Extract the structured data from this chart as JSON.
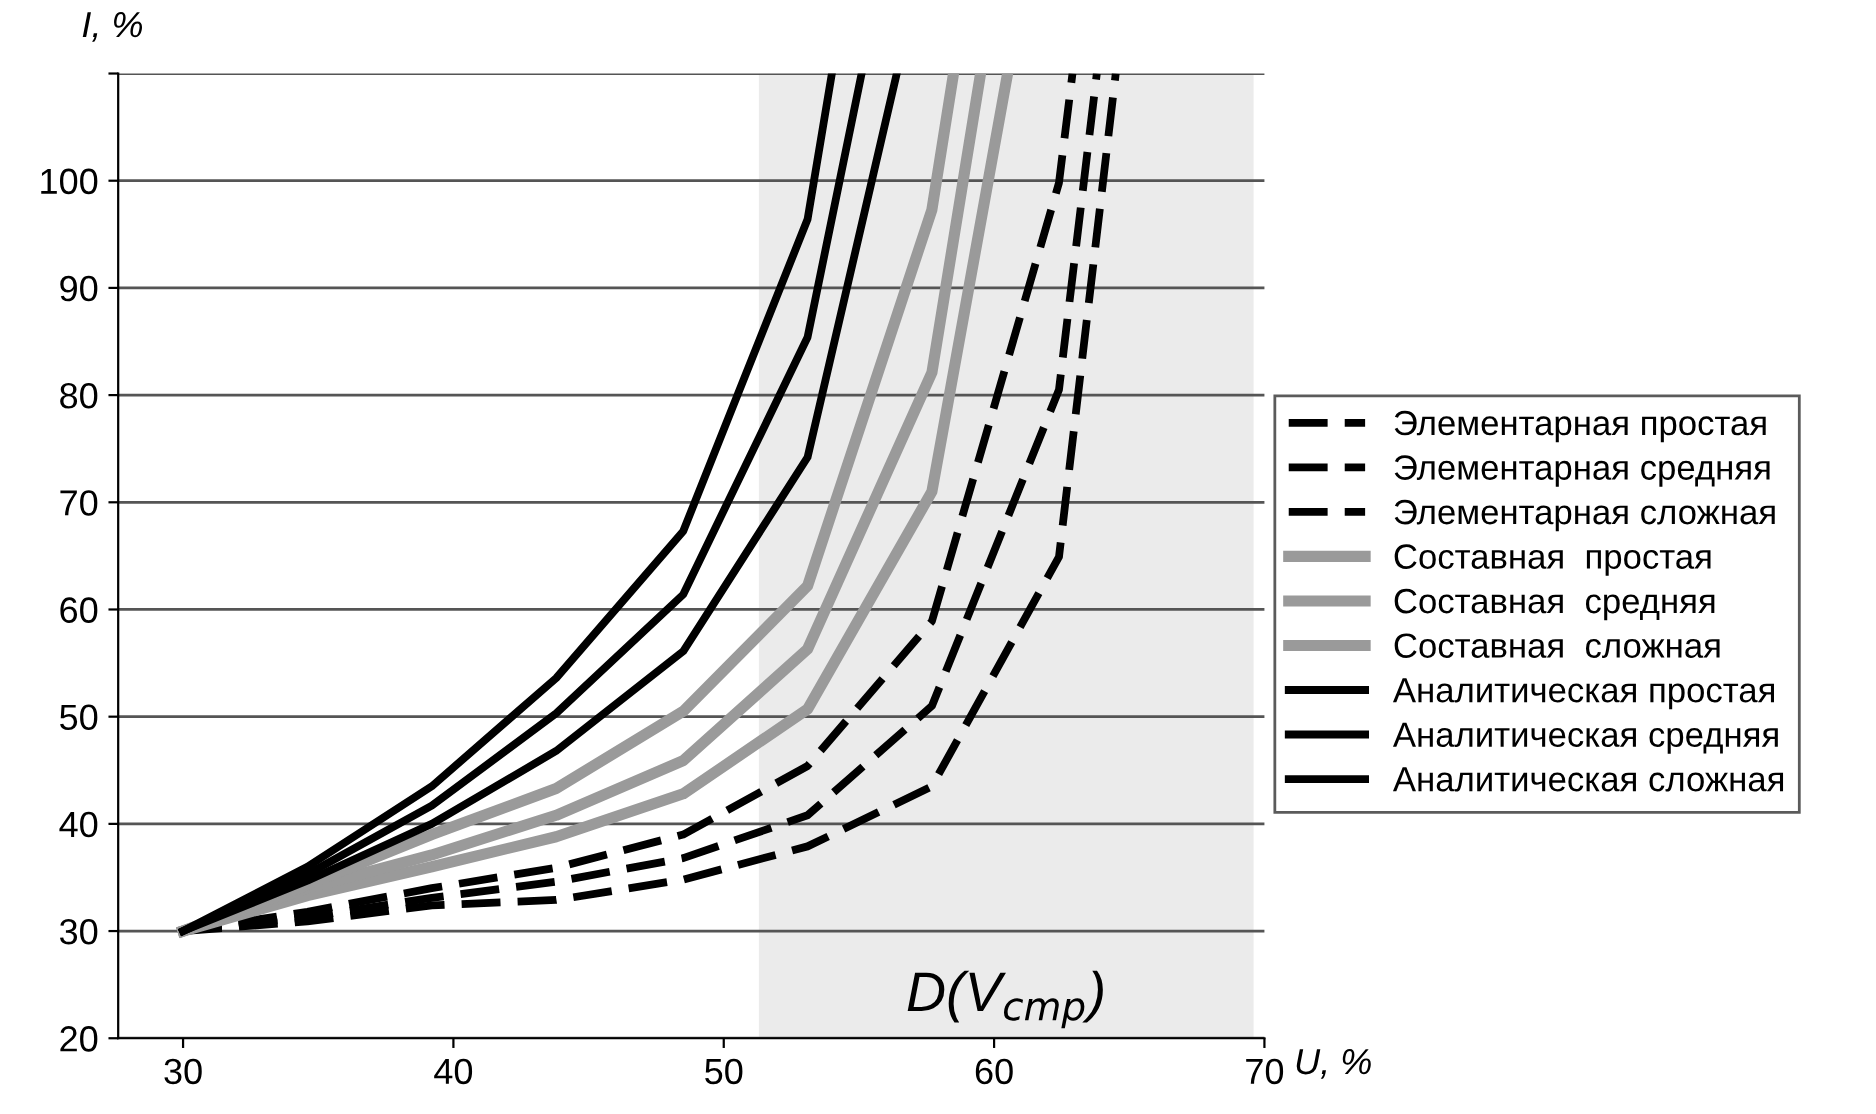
{
  "chart_data": {
    "type": "line",
    "xlabel": "U, %",
    "ylabel": "I, %",
    "xlim": [
      27.6,
      70
    ],
    "xticks": [
      30,
      40,
      50,
      60,
      70
    ],
    "ylim": [
      20,
      110
    ],
    "yticks": [
      20,
      30,
      40,
      50,
      60,
      70,
      80,
      90,
      100,
      {
        "value": 110,
        "label": null
      }
    ],
    "grid": "y",
    "legend": "right",
    "bands": [
      {
        "axis": "x",
        "from": 51.3,
        "to": 69.6,
        "label": "D(V$_{cmp}$)",
        "color": "#ebebeb"
      }
    ],
    "series": [
      {
        "name": "Элементарная простая",
        "color": "#000000",
        "line_style": "dashed",
        "x": [
          30,
          34.6,
          39.2,
          43.8,
          48.5,
          53.1,
          57.7,
          62.4,
          64.5
        ],
        "values": [
          30,
          30.9,
          32.4,
          32.9,
          34.8,
          37.9,
          43.5,
          64.9,
          110
        ]
      },
      {
        "name": "Элементарная средняя",
        "color": "#000000",
        "line_style": "dashed",
        "x": [
          30,
          34.6,
          39.2,
          43.8,
          48.5,
          53.1,
          57.7,
          62.4,
          63.8
        ],
        "values": [
          30,
          31.3,
          33.1,
          34.6,
          36.8,
          40.8,
          51.0,
          80.5,
          110
        ]
      },
      {
        "name": "Элементарная сложная",
        "color": "#000000",
        "line_style": "dashed",
        "x": [
          30,
          34.6,
          39.2,
          43.8,
          48.5,
          53.1,
          57.7,
          62.4,
          62.9
        ],
        "values": [
          30,
          31.8,
          34.0,
          35.9,
          39.0,
          45.4,
          58.9,
          99.8,
          110
        ]
      },
      {
        "name": "Составная  простая",
        "color": "#9a9a9a",
        "line_style": "solid",
        "x": [
          30,
          34.6,
          39.2,
          43.8,
          48.5,
          53.1,
          57.7,
          60.5
        ],
        "values": [
          30,
          33.3,
          36.0,
          38.8,
          42.8,
          50.7,
          71.0,
          110
        ]
      },
      {
        "name": "Составная  средняя",
        "color": "#9a9a9a",
        "line_style": "solid",
        "x": [
          30,
          34.6,
          39.2,
          43.8,
          48.5,
          53.1,
          57.7,
          59.5
        ],
        "values": [
          30,
          34.0,
          37.1,
          40.8,
          45.9,
          56.3,
          82.1,
          110
        ]
      },
      {
        "name": "Составная  сложная",
        "color": "#9a9a9a",
        "line_style": "solid",
        "x": [
          30,
          34.6,
          39.2,
          43.8,
          48.5,
          53.1,
          57.7,
          58.5
        ],
        "values": [
          30,
          34.3,
          39.0,
          43.3,
          50.5,
          62.2,
          97.3,
          110
        ]
      },
      {
        "name": "Аналитическая простая",
        "color": "#000000",
        "line_style": "solid",
        "x": [
          30,
          34.6,
          39.2,
          43.8,
          48.5,
          53.1,
          56.4
        ],
        "values": [
          30,
          34.7,
          40.0,
          46.8,
          56.1,
          74.2,
          110
        ]
      },
      {
        "name": "Аналитическая средняя",
        "color": "#000000",
        "line_style": "solid",
        "x": [
          30,
          34.6,
          39.2,
          43.8,
          48.5,
          53.1,
          55.1
        ],
        "values": [
          30,
          35.3,
          41.7,
          50.3,
          61.4,
          85.4,
          110
        ]
      },
      {
        "name": "Аналитическая сложная",
        "color": "#000000",
        "line_style": "solid",
        "x": [
          30,
          34.6,
          39.2,
          43.8,
          48.5,
          53.1,
          54.0
        ],
        "values": [
          30,
          36.0,
          43.5,
          53.6,
          67.3,
          96.4,
          110
        ]
      }
    ]
  }
}
